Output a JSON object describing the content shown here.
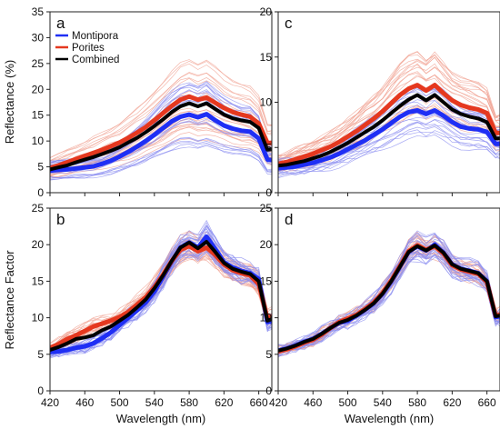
{
  "figure": {
    "x_label": "Wavelength (nm)",
    "y_label_top": "Reflectance (%)",
    "y_label_bottom": "Reflectance Factor"
  },
  "colors": {
    "Montipora": "#1f2ff5",
    "Porites": "#e5381f",
    "Combined": "#000000",
    "montipora_thin": "#8a8cf0",
    "porites_thin": "#f0a090"
  },
  "chart_data": [
    {
      "panel": "a",
      "type": "line",
      "xlim": [
        420,
        675
      ],
      "ylim": [
        0,
        35
      ],
      "xticks": [
        420,
        460,
        500,
        540,
        580,
        620,
        660
      ],
      "yticks": [
        0,
        5,
        10,
        15,
        20,
        25,
        30,
        35
      ],
      "legend": {
        "position": "top-left",
        "entries": [
          "Montipora",
          "Porites",
          "Combined"
        ]
      },
      "x": [
        420,
        430,
        440,
        450,
        460,
        470,
        480,
        490,
        500,
        510,
        520,
        530,
        540,
        550,
        560,
        570,
        580,
        590,
        600,
        610,
        620,
        630,
        640,
        650,
        660,
        670,
        675
      ],
      "series": [
        {
          "name": "Montipora",
          "values": [
            4.3,
            4.4,
            4.5,
            4.7,
            4.9,
            5.1,
            5.6,
            6.2,
            7.0,
            7.9,
            8.9,
            10.0,
            11.2,
            12.5,
            13.8,
            14.7,
            15.1,
            14.6,
            15.2,
            14.0,
            13.0,
            12.4,
            12.0,
            11.8,
            10.5,
            6.4,
            6.3
          ]
        },
        {
          "name": "Porites",
          "values": [
            4.8,
            5.3,
            5.9,
            6.5,
            7.1,
            7.7,
            8.3,
            9.0,
            9.7,
            10.6,
            11.6,
            12.7,
            14.0,
            15.4,
            16.8,
            18.0,
            18.6,
            18.0,
            18.4,
            17.4,
            16.4,
            15.6,
            15.1,
            14.7,
            13.4,
            9.6,
            9.6
          ]
        },
        {
          "name": "Combined",
          "values": [
            4.5,
            4.9,
            5.3,
            5.9,
            6.4,
            6.9,
            7.5,
            8.1,
            8.8,
            9.7,
            10.6,
            11.7,
            12.9,
            14.2,
            15.6,
            16.7,
            17.3,
            16.7,
            17.3,
            16.2,
            15.1,
            14.4,
            14.0,
            13.7,
            12.5,
            8.3,
            8.4
          ]
        }
      ]
    },
    {
      "panel": "c",
      "type": "line",
      "xlim": [
        420,
        675
      ],
      "ylim": [
        0,
        20
      ],
      "xticks": [
        420,
        460,
        500,
        540,
        580,
        620,
        660
      ],
      "yticks": [
        0,
        5,
        10,
        15,
        20
      ],
      "x": [
        420,
        430,
        440,
        450,
        460,
        470,
        480,
        490,
        500,
        510,
        520,
        530,
        540,
        550,
        560,
        570,
        580,
        590,
        600,
        610,
        620,
        630,
        640,
        650,
        660,
        670,
        675
      ],
      "series": [
        {
          "name": "Montipora",
          "values": [
            2.7,
            2.8,
            2.9,
            3.1,
            3.3,
            3.6,
            3.9,
            4.3,
            4.8,
            5.3,
            5.8,
            6.4,
            7.0,
            7.7,
            8.4,
            8.9,
            9.1,
            8.7,
            9.1,
            8.5,
            7.8,
            7.3,
            7.1,
            7.0,
            6.7,
            5.4,
            5.4
          ]
        },
        {
          "name": "Porites",
          "values": [
            3.2,
            3.4,
            3.7,
            4.0,
            4.3,
            4.7,
            5.1,
            5.6,
            6.2,
            6.8,
            7.5,
            8.2,
            9.0,
            9.9,
            10.8,
            11.5,
            11.9,
            11.3,
            11.9,
            11.0,
            10.2,
            9.7,
            9.4,
            9.2,
            8.8,
            6.6,
            6.6
          ]
        },
        {
          "name": "Combined",
          "values": [
            3.0,
            3.1,
            3.3,
            3.5,
            3.8,
            4.1,
            4.5,
            5.0,
            5.5,
            6.1,
            6.7,
            7.3,
            8.0,
            8.8,
            9.6,
            10.3,
            10.8,
            10.2,
            10.8,
            10.0,
            9.2,
            8.7,
            8.4,
            8.2,
            7.8,
            6.0,
            6.0
          ]
        }
      ]
    },
    {
      "panel": "b",
      "type": "line",
      "xlim": [
        420,
        675
      ],
      "ylim": [
        0,
        25
      ],
      "xticks": [
        420,
        460,
        500,
        540,
        580,
        620,
        660
      ],
      "yticks": [
        0,
        5,
        10,
        15,
        20,
        25
      ],
      "x": [
        420,
        430,
        440,
        450,
        460,
        470,
        480,
        490,
        500,
        510,
        520,
        530,
        540,
        550,
        560,
        570,
        580,
        590,
        600,
        610,
        620,
        630,
        640,
        650,
        660,
        670,
        675
      ],
      "series": [
        {
          "name": "Montipora",
          "values": [
            5.3,
            5.4,
            5.6,
            5.9,
            6.1,
            6.5,
            7.2,
            8.0,
            9.0,
            10.0,
            11.0,
            12.1,
            13.6,
            15.6,
            17.7,
            19.6,
            20.3,
            19.6,
            21.1,
            19.4,
            17.6,
            16.9,
            16.4,
            16.1,
            15.3,
            9.4,
            9.5
          ]
        },
        {
          "name": "Porites",
          "values": [
            5.9,
            6.4,
            7.1,
            7.6,
            8.2,
            8.8,
            9.2,
            9.6,
            10.1,
            10.8,
            11.8,
            12.8,
            14.2,
            15.9,
            17.8,
            19.3,
            19.8,
            19.1,
            19.6,
            18.6,
            17.3,
            16.5,
            16.1,
            15.8,
            14.6,
            9.9,
            10.2
          ]
        },
        {
          "name": "Combined",
          "values": [
            5.6,
            6.0,
            6.5,
            7.1,
            7.3,
            7.6,
            8.3,
            8.8,
            9.6,
            10.4,
            11.4,
            12.5,
            14.0,
            15.8,
            17.8,
            19.6,
            20.3,
            19.5,
            20.4,
            19.0,
            17.5,
            16.7,
            16.3,
            16.0,
            15.0,
            9.6,
            9.8
          ]
        }
      ]
    },
    {
      "panel": "d",
      "type": "line",
      "xlim": [
        420,
        675
      ],
      "ylim": [
        0,
        25
      ],
      "xticks": [
        420,
        460,
        500,
        540,
        580,
        620,
        660
      ],
      "yticks": [
        0,
        5,
        10,
        15,
        20,
        25
      ],
      "x": [
        420,
        430,
        440,
        450,
        460,
        470,
        480,
        490,
        500,
        510,
        520,
        530,
        540,
        550,
        560,
        570,
        580,
        590,
        600,
        610,
        620,
        630,
        640,
        650,
        660,
        670,
        675
      ],
      "series": [
        {
          "name": "Montipora",
          "values": [
            5.5,
            5.8,
            6.2,
            6.7,
            7.1,
            7.8,
            8.6,
            9.3,
            9.6,
            10.3,
            11.1,
            12.0,
            13.3,
            15.0,
            17.0,
            19.0,
            19.8,
            19.2,
            20.0,
            18.9,
            17.3,
            16.7,
            16.4,
            16.1,
            15.0,
            10.1,
            10.2
          ]
        },
        {
          "name": "Porites",
          "values": [
            5.4,
            5.7,
            6.1,
            6.6,
            7.0,
            7.7,
            8.6,
            9.4,
            9.9,
            10.4,
            11.2,
            12.1,
            13.4,
            15.1,
            17.1,
            19.1,
            19.9,
            19.3,
            19.8,
            18.8,
            17.2,
            16.6,
            16.3,
            16.0,
            14.9,
            10.3,
            10.4
          ]
        },
        {
          "name": "Combined",
          "values": [
            5.5,
            5.8,
            6.2,
            6.7,
            7.1,
            7.8,
            8.6,
            9.3,
            9.7,
            10.3,
            11.1,
            12.0,
            13.3,
            15.0,
            17.0,
            19.0,
            19.8,
            19.2,
            19.9,
            18.9,
            17.3,
            16.7,
            16.4,
            16.1,
            15.0,
            10.2,
            10.3
          ]
        }
      ]
    }
  ]
}
